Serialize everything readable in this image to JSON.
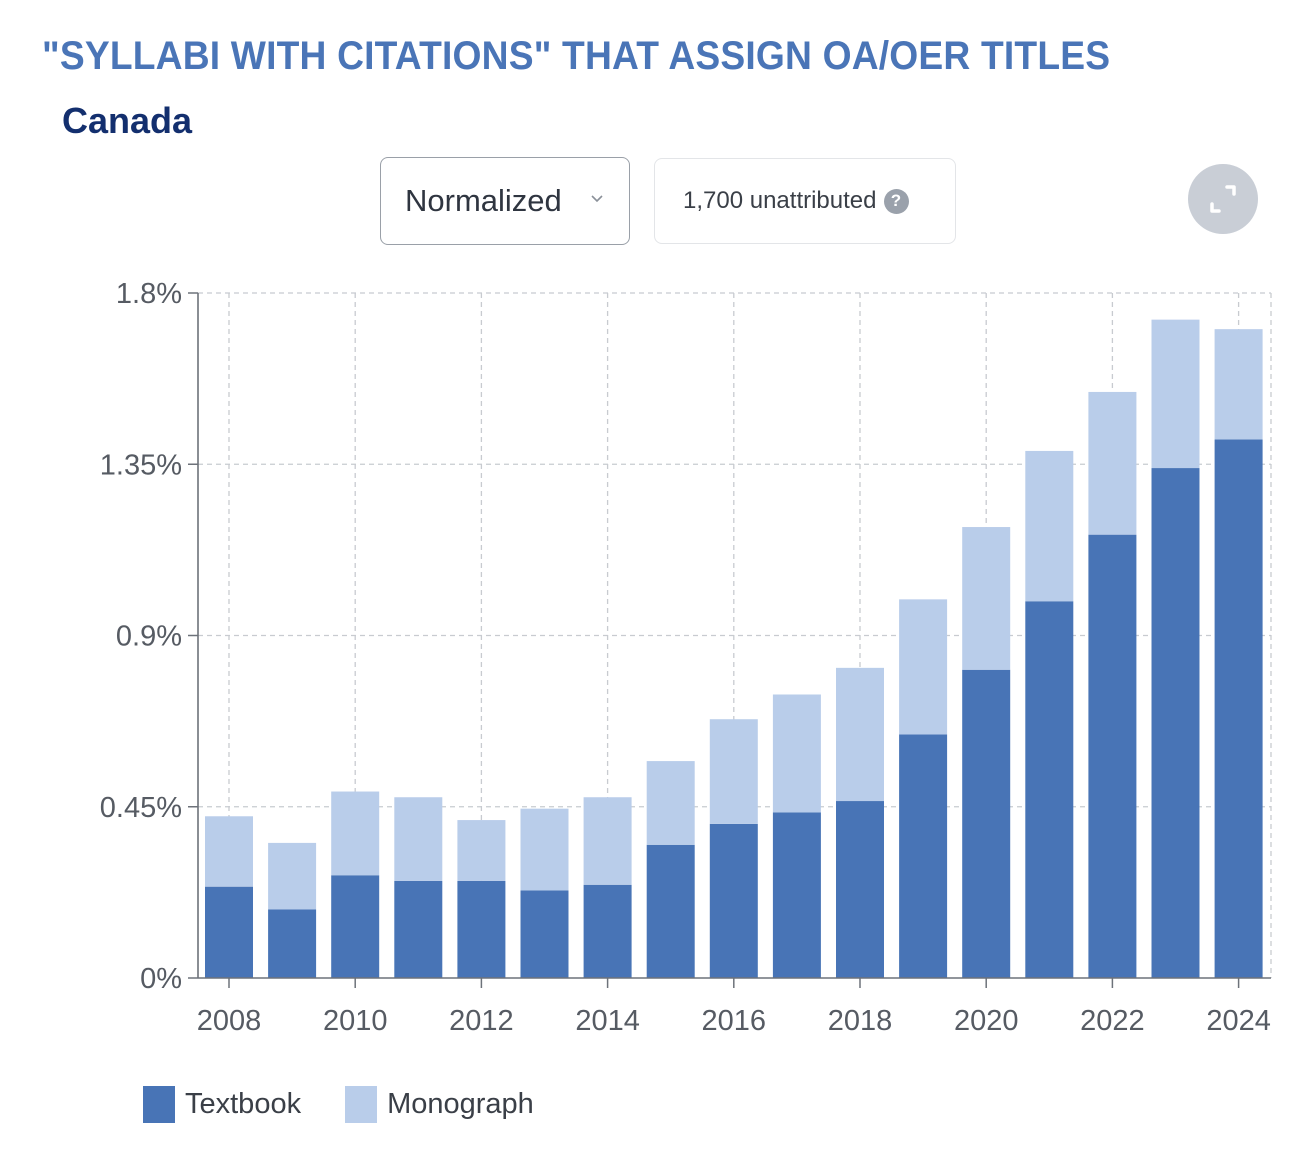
{
  "header": {
    "title": "\"SYLLABI WITH CITATIONS\" THAT ASSIGN OA/OER TITLES",
    "subtitle": "Canada"
  },
  "controls": {
    "mode_label": "Normalized",
    "mode_icon": "chevron-down-icon",
    "unattributed_label": "1,700 unattributed",
    "help_glyph": "?",
    "expand_icon": "expand-icon"
  },
  "colors": {
    "textbook": "#4874b6",
    "monograph": "#b9cdea",
    "title": "#4a75b7",
    "subtitle": "#132f6e"
  },
  "chart_data": {
    "type": "bar",
    "stacked": true,
    "x": [
      2008,
      2009,
      2010,
      2011,
      2012,
      2013,
      2014,
      2015,
      2016,
      2017,
      2018,
      2019,
      2020,
      2021,
      2022,
      2023,
      2024
    ],
    "series": [
      {
        "name": "Textbook",
        "values": [
          0.24,
          0.18,
          0.27,
          0.255,
          0.255,
          0.23,
          0.245,
          0.35,
          0.405,
          0.435,
          0.465,
          0.64,
          0.81,
          0.99,
          1.165,
          1.34,
          1.415
        ]
      },
      {
        "name": "Monograph",
        "values": [
          0.185,
          0.175,
          0.22,
          0.22,
          0.16,
          0.215,
          0.23,
          0.22,
          0.275,
          0.31,
          0.35,
          0.355,
          0.375,
          0.395,
          0.375,
          0.39,
          0.29
        ]
      }
    ],
    "xticks": [
      "2008",
      "2010",
      "2012",
      "2014",
      "2016",
      "2018",
      "2020",
      "2022",
      "2024"
    ],
    "yticks": [
      "0%",
      "0.45%",
      "0.9%",
      "1.35%",
      "1.8%"
    ],
    "ylim": [
      0,
      1.8
    ],
    "grid": true,
    "legend": "bottom-left"
  }
}
